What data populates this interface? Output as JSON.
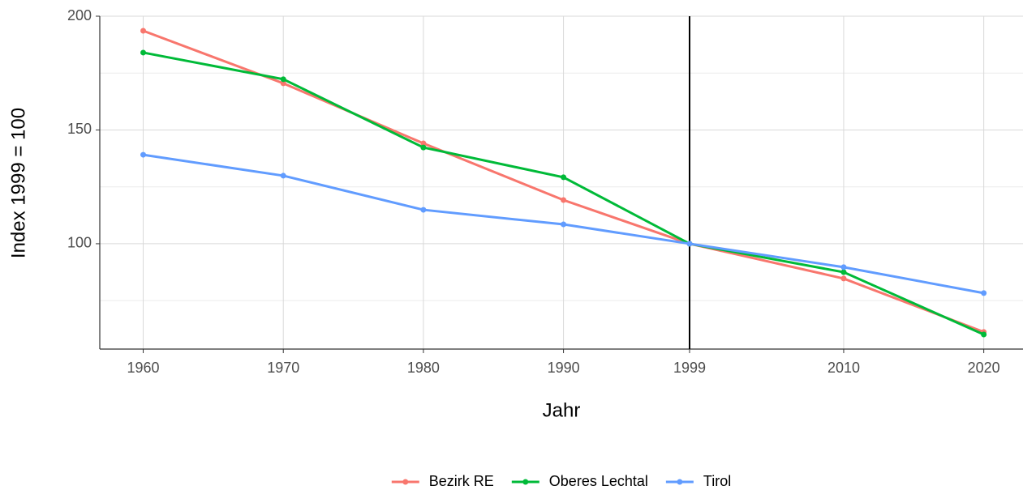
{
  "chart_data": {
    "type": "line",
    "x_label": "Jahr",
    "y_label": "Index 1999 = 100",
    "x": [
      1960,
      1970,
      1980,
      1990,
      1999,
      2010,
      2020
    ],
    "series": [
      {
        "name": "Bezirk RE",
        "color": "#F8766D",
        "values": [
          193.6,
          170.5,
          144.1,
          119.2,
          100,
          84.7,
          61.2
        ]
      },
      {
        "name": "Oberes Lechtal",
        "color": "#00BA38",
        "values": [
          184.0,
          172.3,
          142.3,
          129.2,
          100,
          87.5,
          60.1
        ]
      },
      {
        "name": "Tirol",
        "color": "#619CFF",
        "values": [
          139.1,
          129.9,
          114.9,
          108.5,
          100,
          89.7,
          78.3
        ]
      }
    ],
    "xlim": [
      1956.9,
      2022.8
    ],
    "xticks": [
      1960,
      1970,
      1980,
      1990,
      1999,
      2010,
      2020
    ],
    "ylim": [
      53.7,
      200
    ],
    "yticks": [
      100,
      150,
      200
    ],
    "y_minor_ticks": [
      75,
      125,
      175
    ],
    "vline": 1999,
    "grid": true,
    "legend": "bottom"
  }
}
